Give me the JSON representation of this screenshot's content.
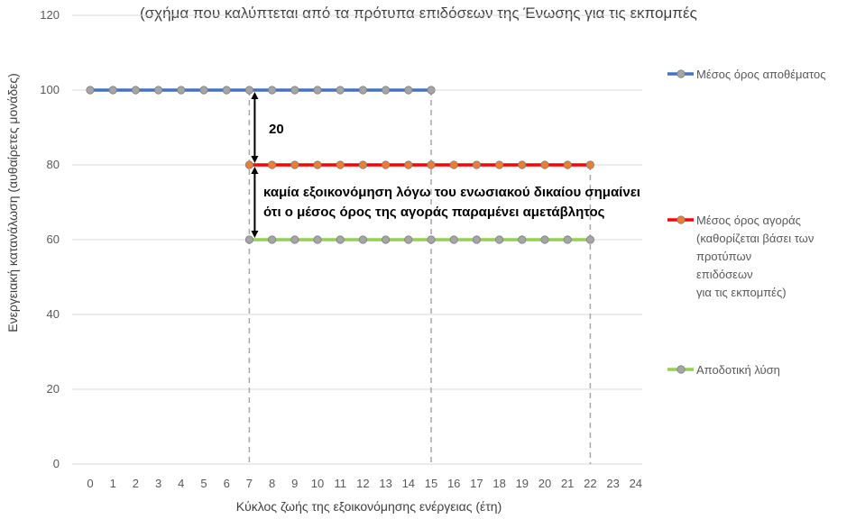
{
  "colors": {
    "stock_average": "#4472C4",
    "market_average": "#FF0000",
    "efficient_solution": "#92D050",
    "marker_fill": "#A5A5A5",
    "marker_fill_market": "#ED7D31",
    "gridline": "#D9D9D9",
    "guide_line": "#A6A6A6"
  },
  "chart_data": {
    "type": "line",
    "title": "(σχήμα που καλύπτεται από τα πρότυπα επιδόσεων της Ένωσης για τις εκπομπές",
    "xlabel": "Κύκλος ζωής της εξοικονόμησης ενέργειας (έτη)",
    "ylabel": "Ενεργειακή κατανάλωση (αυθαίρετες μονάδες)",
    "x_ticks": [
      "0",
      "1",
      "2",
      "3",
      "4",
      "5",
      "6",
      "7",
      "8",
      "9",
      "10",
      "11",
      "12",
      "13",
      "14",
      "15",
      "16",
      "17",
      "18",
      "19",
      "20",
      "21",
      "22",
      "23",
      "24"
    ],
    "y_ticks": [
      "0",
      "20",
      "40",
      "60",
      "80",
      "100",
      "120"
    ],
    "xlim": [
      0,
      24
    ],
    "ylim": [
      0,
      120
    ],
    "grid": "horizontal",
    "legend_position": "right",
    "series": [
      {
        "name": "Μέσος όρος αποθέματος",
        "x": [
          0,
          1,
          2,
          3,
          4,
          5,
          6,
          7,
          8,
          9,
          10,
          11,
          12,
          13,
          14,
          15
        ],
        "y": [
          100,
          100,
          100,
          100,
          100,
          100,
          100,
          100,
          100,
          100,
          100,
          100,
          100,
          100,
          100,
          100
        ]
      },
      {
        "name": "Μέσος όρος αγοράς (καθορίζεται βάσει των προτύπων επιδόσεων για τις εκπομπές)",
        "name_lines": [
          "Μέσος όρος αγοράς",
          "(καθορίζεται βάσει των",
          "προτύπων",
          "επιδόσεων",
          "για τις εκπομπές)"
        ],
        "x": [
          7,
          8,
          9,
          10,
          11,
          12,
          13,
          14,
          15,
          16,
          17,
          18,
          19,
          20,
          21,
          22
        ],
        "y": [
          80,
          80,
          80,
          80,
          80,
          80,
          80,
          80,
          80,
          80,
          80,
          80,
          80,
          80,
          80,
          80
        ]
      },
      {
        "name": "Αποδοτική λύση",
        "x": [
          7,
          8,
          9,
          10,
          11,
          12,
          13,
          14,
          15,
          16,
          17,
          18,
          19,
          20,
          21,
          22
        ],
        "y": [
          60,
          60,
          60,
          60,
          60,
          60,
          60,
          60,
          60,
          60,
          60,
          60,
          60,
          60,
          60,
          60
        ]
      }
    ],
    "vertical_guides_x": [
      7,
      15,
      22
    ],
    "annotations": [
      {
        "text": "20",
        "x": 7,
        "y_from": 100,
        "y_to": 80
      },
      {
        "lines": [
          "καμία εξοικονόμηση λόγω του ενωσιακού δικαίου σημαίνει",
          "ότι ο μέσος όρος της αγοράς παραμένει αμετάβλητος"
        ],
        "x": 7,
        "y_from": 80,
        "y_to": 60
      }
    ]
  }
}
